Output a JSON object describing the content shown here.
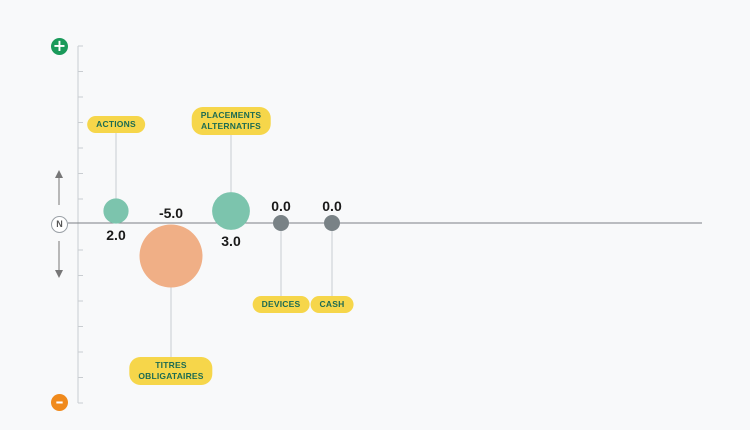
{
  "colors": {
    "positive": "#7cc4ad",
    "negative": "#f0af86",
    "neutral": "#798286",
    "label_bg": "#f6d64a",
    "label_text": "#1d6b52",
    "plus_badge": "#1a9a5a",
    "minus_badge": "#f08a1c"
  },
  "scale": {
    "top_icon": "plus-icon",
    "bottom_icon": "minus-icon",
    "neutral_label": "N"
  },
  "chart_data": {
    "type": "scatter",
    "title": "",
    "xlabel": "",
    "ylabel": "",
    "ylim": [
      -10,
      10
    ],
    "grid": false,
    "points": [
      {
        "label": "ACTIONS",
        "value": 2.0,
        "value_label": "2.0"
      },
      {
        "label": "TITRES OBLIGATAIRES",
        "value": -5.0,
        "value_label": "-5.0"
      },
      {
        "label": "PLACEMENTS ALTERNATIFS",
        "value": 3.0,
        "value_label": "3.0"
      },
      {
        "label": "DEVICES",
        "value": 0.0,
        "value_label": "0.0"
      },
      {
        "label": "CASH",
        "value": 0.0,
        "value_label": "0.0"
      }
    ]
  }
}
